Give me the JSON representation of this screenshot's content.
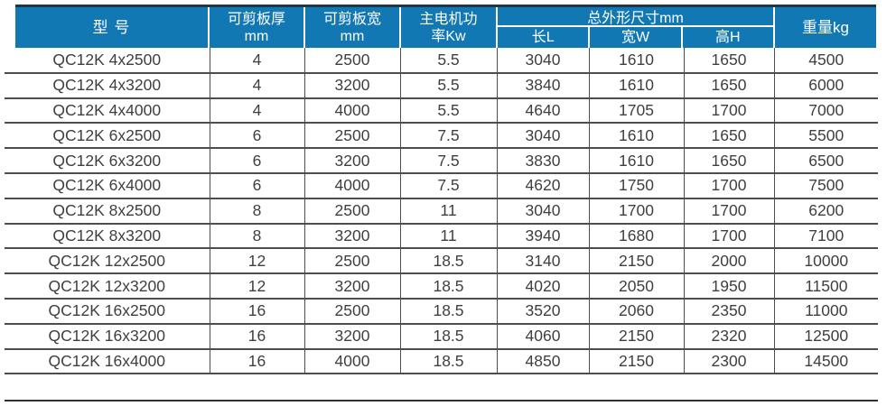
{
  "table": {
    "header": {
      "model": "型 号",
      "thickness": "可剪板厚\nmm",
      "width": "可剪板宽\nmm",
      "power": "主电机功\n率Kw",
      "dimensions": "总外形尺寸mm",
      "dim_length": "长L",
      "dim_width": "宽W",
      "dim_height": "高H",
      "weight": "重量kg"
    },
    "rows": [
      [
        "QC12K 4x2500",
        "4",
        "2500",
        "5.5",
        "3040",
        "1610",
        "1650",
        "4500"
      ],
      [
        "QC12K 4x3200",
        "4",
        "3200",
        "5.5",
        "3840",
        "1610",
        "1650",
        "6000"
      ],
      [
        "QC12K 4x4000",
        "4",
        "4000",
        "5.5",
        "4640",
        "1705",
        "1700",
        "7000"
      ],
      [
        "QC12K 6x2500",
        "6",
        "2500",
        "7.5",
        "3040",
        "1610",
        "1650",
        "5500"
      ],
      [
        "QC12K 6x3200",
        "6",
        "3200",
        "7.5",
        "3830",
        "1610",
        "1650",
        "6500"
      ],
      [
        "QC12K 6x4000",
        "6",
        "4000",
        "7.5",
        "4620",
        "1750",
        "1700",
        "7500"
      ],
      [
        "QC12K 8x2500",
        "8",
        "2500",
        "11",
        "3040",
        "1700",
        "1700",
        "6200"
      ],
      [
        "QC12K 8x3200",
        "8",
        "3200",
        "11",
        "3940",
        "1680",
        "1700",
        "7100"
      ],
      [
        "QC12K 12x2500",
        "12",
        "2500",
        "18.5",
        "3140",
        "2150",
        "2000",
        "10000"
      ],
      [
        "QC12K 12x3200",
        "12",
        "3200",
        "18.5",
        "4020",
        "2050",
        "1950",
        "11500"
      ],
      [
        "QC12K 16x2500",
        "16",
        "2500",
        "18.5",
        "3520",
        "2060",
        "2350",
        "11000"
      ],
      [
        "QC12K 16x3200",
        "16",
        "3200",
        "18.5",
        "4060",
        "2150",
        "2320",
        "12500"
      ],
      [
        "QC12K 16x4000",
        "16",
        "4000",
        "18.5",
        "4850",
        "2150",
        "2300",
        "14500"
      ]
    ]
  },
  "colors": {
    "header_bg": "#1278b4",
    "header_text": "#ffffff",
    "top_rule": "#1d3649",
    "grid_line": "#4d4d4d",
    "body_text": "#3f3f3f"
  }
}
